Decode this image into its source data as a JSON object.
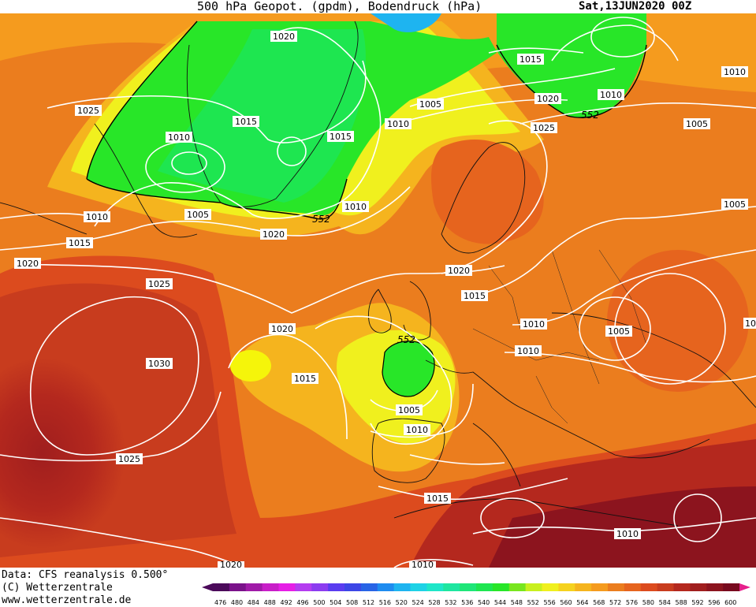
{
  "header": {
    "title": "500 hPa Geopot. (gpdm), Bodendruck (hPa)",
    "date": "Sat,13JUN2020 00Z"
  },
  "footer": {
    "data_line": "Data: CFS reanalysis 0.500°",
    "copyright": "(C) Wetterzentrale",
    "url": "www.wetterzentrale.de"
  },
  "colorbar": {
    "ticks": [
      "476",
      "480",
      "484",
      "488",
      "492",
      "496",
      "500",
      "504",
      "508",
      "512",
      "516",
      "520",
      "524",
      "528",
      "532",
      "536",
      "540",
      "544",
      "548",
      "552",
      "556",
      "560",
      "564",
      "568",
      "572",
      "576",
      "580",
      "584",
      "588",
      "592",
      "596",
      "600"
    ],
    "colors": [
      "#4b0a5a",
      "#7a128a",
      "#a01aa8",
      "#c81ec8",
      "#e61ee6",
      "#b43cf0",
      "#8c3cf0",
      "#5a3cf0",
      "#3c46e6",
      "#2864e6",
      "#1e8cf0",
      "#1eb4f0",
      "#1ed2e6",
      "#1ee6c8",
      "#1ee6a0",
      "#1ee678",
      "#1ee650",
      "#28e628",
      "#78e61e",
      "#c8f01e",
      "#f0f01e",
      "#f5d21e",
      "#f5b41e",
      "#f59b1e",
      "#eb7d1e",
      "#e6641e",
      "#dc4b1e",
      "#c83c1e",
      "#b4281e",
      "#a01e1e",
      "#8c141e",
      "#780a1e"
    ]
  },
  "isobar_labels": [
    "1020",
    "1015",
    "1010",
    "1005",
    "1025",
    "1015",
    "1010",
    "1005",
    "1020",
    "1010",
    "1010",
    "1025",
    "1010",
    "1005",
    "1015",
    "1020",
    "1020",
    "1015",
    "1025",
    "1010",
    "1005",
    "1020",
    "1030",
    "1015",
    "1025",
    "1010",
    "1005",
    "1015",
    "1010",
    "1020",
    "1010",
    "1010",
    "1020",
    "1005",
    "1015",
    "1010",
    "1010",
    "1005",
    "10"
  ],
  "height_labels": [
    "552",
    "552",
    "552"
  ]
}
